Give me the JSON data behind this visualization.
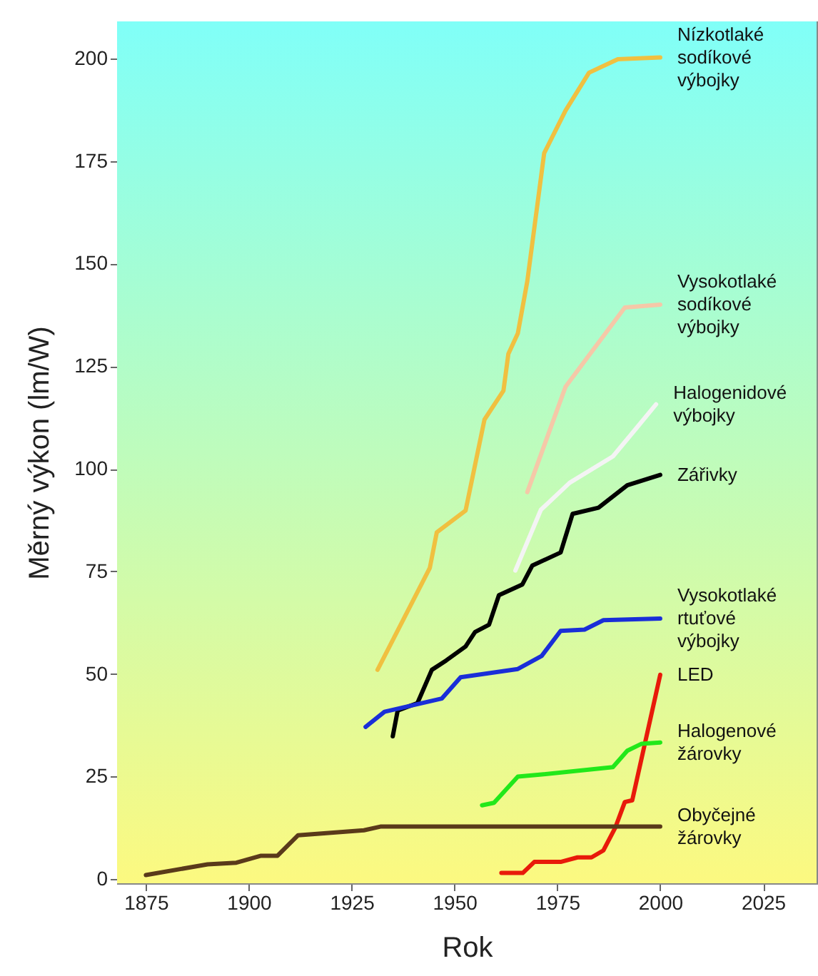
{
  "chart_data": {
    "type": "line",
    "xlabel": "Rok",
    "ylabel": "Měrný výkon (lm/W)",
    "xlim": [
      1868,
      2038
    ],
    "ylim": [
      -1,
      209
    ],
    "xticks": [
      1875,
      1900,
      1925,
      1950,
      1975,
      2000,
      2025
    ],
    "yticks": [
      0,
      25,
      50,
      75,
      100,
      125,
      150,
      175,
      200
    ],
    "grid": false,
    "line_style": "solid",
    "marker": "none",
    "series": [
      {
        "name": "Nízkotlaké sodíkové výbojky",
        "color": "#f0c040",
        "x": [
          1931.3,
          1944,
          1945.7,
          1952.7,
          1957.3,
          1961.9,
          1963.1,
          1965.4,
          1967.7,
          1971.8,
          1977,
          1982.7,
          1989.7,
          2000
        ],
        "values": [
          51,
          75.8,
          84.5,
          89.8,
          112,
          119,
          128,
          133,
          145.7,
          176.9,
          187.3,
          196.5,
          199.8,
          200.2
        ]
      },
      {
        "name": "Vysokotlaké sodíkové výbojky",
        "color": "#f5c8a8",
        "x": [
          1967.7,
          1977,
          1991.4,
          2000
        ],
        "values": [
          94.3,
          120,
          139.3,
          140
        ]
      },
      {
        "name": "Halogenidové výbojky",
        "color": "#f4f4f4",
        "x": [
          1964.8,
          1971,
          1978,
          1988.5,
          1994.3,
          1999
        ],
        "values": [
          75.2,
          90,
          96.6,
          103,
          110,
          115.7
        ]
      },
      {
        "name": "Zářivky",
        "color": "#000000",
        "x": [
          1935,
          1936.2,
          1941,
          1944.5,
          1948,
          1952.7,
          1955,
          1958.4,
          1960.8,
          1966.5,
          1968.9,
          1975.8,
          1978.7,
          1985,
          1992,
          2000
        ],
        "values": [
          34.8,
          41.1,
          42.9,
          51,
          53.3,
          56.7,
          60.2,
          62,
          69.2,
          71.8,
          76.4,
          79.6,
          89,
          90.5,
          96,
          98.5
        ]
      },
      {
        "name": "Vysokotlaké rtuťové výbojky",
        "color": "#1a2ed8",
        "x": [
          1928.4,
          1933,
          1946.9,
          1951.5,
          1965.4,
          1971.2,
          1975.8,
          1981.6,
          1986.2,
          2000
        ],
        "values": [
          37.1,
          40.8,
          44,
          49.2,
          51.2,
          54.4,
          60.5,
          60.8,
          63.1,
          63.5
        ]
      },
      {
        "name": "LED",
        "color": "#e81a0a",
        "x": [
          1961.4,
          1966.6,
          1969.4,
          1975.8,
          1979.9,
          1983.3,
          1986.2,
          1989.1,
          1991.4,
          1993.2,
          2000
        ],
        "values": [
          1.5,
          1.5,
          4.2,
          4.2,
          5.3,
          5.3,
          7,
          12.6,
          18.8,
          19.2,
          49.8
        ]
      },
      {
        "name": "Halogenové žárovky",
        "color": "#22e81a",
        "x": [
          1956.7,
          1959.6,
          1965.4,
          1971.2,
          1988.5,
          1992,
          1995.5,
          2000
        ],
        "values": [
          18,
          18.6,
          25,
          25.5,
          27.3,
          31.3,
          33,
          33.3
        ]
      },
      {
        "name": "Obyčejné žárovky",
        "color": "#5a3a1a",
        "x": [
          1875,
          1890,
          1897,
          1903,
          1907,
          1912,
          1928,
          1932,
          2000
        ],
        "values": [
          1,
          3.6,
          4,
          5.7,
          5.7,
          10.7,
          11.9,
          12.8,
          12.8
        ]
      }
    ]
  }
}
